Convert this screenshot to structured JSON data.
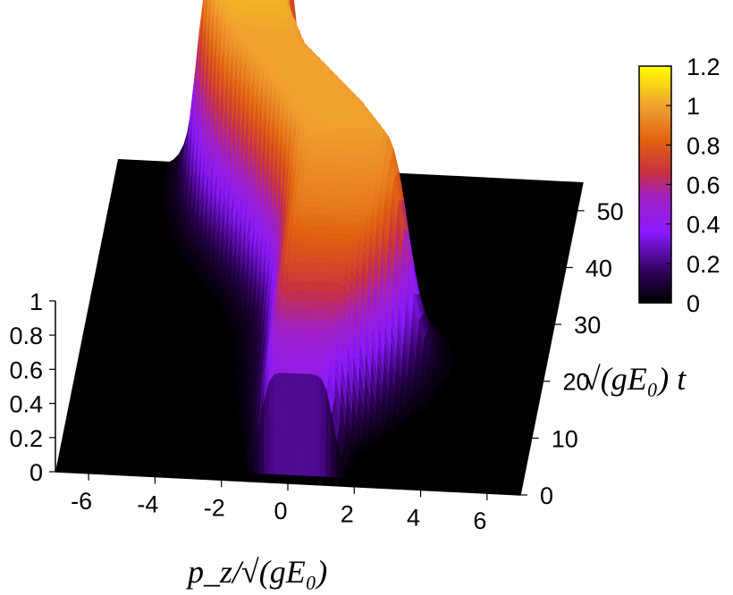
{
  "chart_data": {
    "type": "surface3d",
    "title": "",
    "xlabel": "p_z/√(gE₀)",
    "ylabel": "√(gE₀) t",
    "zlabel": "",
    "xlim": [
      -7,
      7
    ],
    "ylim": [
      0,
      55
    ],
    "zlim": [
      0,
      1.2
    ],
    "x_ticks": [
      "-6",
      "-4",
      "-2",
      "0",
      "2",
      "4",
      "6"
    ],
    "y_ticks": [
      "0",
      "10",
      "20",
      "30",
      "40",
      "50"
    ],
    "z_ticks": [
      "0",
      "0.2",
      "0.4",
      "0.6",
      "0.8",
      "1"
    ],
    "colorbar": {
      "ticks": [
        "0",
        "0.2",
        "0.4",
        "0.6",
        "0.8",
        "1",
        "1.2"
      ],
      "range": [
        0,
        1.2
      ],
      "colors": [
        "#000000",
        "#3a0070",
        "#8a1aff",
        "#c02060",
        "#e05a10",
        "#f09020",
        "#ffff00"
      ]
    },
    "series": [
      {
        "t": 5,
        "center": 0.2,
        "width": 1.1,
        "peak": 0.45
      },
      {
        "t": 10,
        "center": 0.6,
        "width": 1.5,
        "peak": 0.75
      },
      {
        "t": 15,
        "center": 0.9,
        "width": 1.8,
        "peak": 0.9
      },
      {
        "t": 20,
        "center": 1.0,
        "width": 2.0,
        "peak": 0.95
      },
      {
        "t": 25,
        "center": 0.8,
        "width": 2.0,
        "peak": 1.0
      },
      {
        "t": 30,
        "center": 0.0,
        "width": 1.9,
        "peak": 1.0
      },
      {
        "t": 35,
        "center": -1.0,
        "width": 1.8,
        "peak": 1.0
      },
      {
        "t": 40,
        "center": -2.0,
        "width": 1.7,
        "peak": 1.0
      },
      {
        "t": 45,
        "center": -2.6,
        "width": 1.6,
        "peak": 1.05
      },
      {
        "t": 50,
        "center": -3.0,
        "width": 1.5,
        "peak": 1.1
      }
    ]
  },
  "labels": {
    "x_axis_label": "p_z/√(gE₀)",
    "y_axis_label": "√(gE₀) t"
  }
}
